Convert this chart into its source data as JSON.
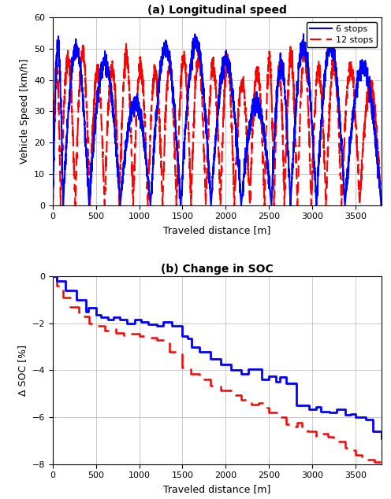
{
  "title_a": "(a) Longitudinal speed",
  "title_b": "(b) Change in SOC",
  "xlabel": "Traveled distance [m]",
  "ylabel_a": "Vehicle Speed [km/h]",
  "ylabel_b": "Δ SOC [%]",
  "legend_6": "6 stops",
  "legend_12": "12 stops",
  "color_6": "#0000FF",
  "color_12": "#FF0000",
  "xlim": [
    0,
    3800
  ],
  "ylim_a": [
    0,
    60
  ],
  "ylim_b": [
    -8,
    0
  ],
  "xticks": [
    0,
    500,
    1000,
    1500,
    2000,
    2500,
    3000,
    3500
  ],
  "yticks_a": [
    0,
    10,
    20,
    30,
    40,
    50,
    60
  ],
  "yticks_b": [
    0,
    -2,
    -4,
    -6,
    -8
  ],
  "speed_6_stops": [
    0,
    120,
    420,
    780,
    1130,
    1480,
    1830,
    2180,
    2530,
    2750,
    3050,
    3380,
    3800
  ],
  "speed_6_peaks": [
    51,
    50,
    46,
    33,
    50,
    52,
    46,
    33,
    45,
    51,
    51,
    44
  ],
  "speed_12_stops": [
    0,
    90,
    260,
    430,
    600,
    770,
    930,
    1100,
    1270,
    1430,
    1600,
    1770,
    1940,
    2100,
    2280,
    2450,
    2560,
    2680,
    2830,
    2990,
    3160,
    3340,
    3550,
    3800
  ],
  "speed_12_peaks": [
    46,
    47,
    49,
    43,
    44,
    48,
    44,
    43,
    45,
    47,
    47,
    45,
    46,
    39,
    43,
    48,
    43,
    48,
    49,
    43,
    46,
    44,
    38
  ],
  "soc6_x": [
    0,
    50,
    150,
    270,
    380,
    410,
    500,
    560,
    640,
    700,
    780,
    860,
    950,
    1020,
    1100,
    1200,
    1280,
    1380,
    1500,
    1560,
    1610,
    1700,
    1820,
    1940,
    2060,
    2180,
    2260,
    2420,
    2500,
    2580,
    2630,
    2700,
    2820,
    2960,
    3050,
    3100,
    3200,
    3280,
    3380,
    3450,
    3500,
    3620,
    3700,
    3800
  ],
  "soc6_y": [
    0.0,
    -0.2,
    -0.6,
    -1.0,
    -1.5,
    -1.35,
    -1.65,
    -1.75,
    -1.85,
    -1.75,
    -1.85,
    -2.0,
    -1.85,
    -1.95,
    -2.05,
    -2.1,
    -1.95,
    -2.1,
    -2.55,
    -2.65,
    -3.0,
    -3.2,
    -3.5,
    -3.75,
    -4.0,
    -4.15,
    -3.95,
    -4.4,
    -4.25,
    -4.5,
    -4.3,
    -4.55,
    -5.5,
    -5.65,
    -5.55,
    -5.75,
    -5.8,
    -5.65,
    -5.9,
    -5.85,
    -6.0,
    -6.1,
    -6.6,
    -6.9
  ],
  "soc12_x": [
    0,
    50,
    120,
    200,
    300,
    420,
    500,
    600,
    660,
    730,
    820,
    900,
    1000,
    1100,
    1200,
    1350,
    1500,
    1600,
    1700,
    1820,
    1940,
    2060,
    2180,
    2300,
    2380,
    2440,
    2500,
    2600,
    2700,
    2780,
    2830,
    2880,
    2950,
    3050,
    3120,
    3180,
    3250,
    3380,
    3450,
    3500,
    3580,
    3650,
    3720,
    3800
  ],
  "soc12_y": [
    0.0,
    -0.4,
    -0.9,
    -1.3,
    -1.7,
    -2.0,
    -2.1,
    -2.3,
    -2.25,
    -2.4,
    -2.5,
    -2.45,
    -2.55,
    -2.6,
    -2.7,
    -3.2,
    -3.9,
    -4.15,
    -4.4,
    -4.65,
    -4.85,
    -5.05,
    -5.25,
    -5.45,
    -5.4,
    -5.6,
    -5.8,
    -6.0,
    -6.3,
    -6.4,
    -6.25,
    -6.4,
    -6.6,
    -6.8,
    -6.7,
    -6.85,
    -7.05,
    -7.3,
    -7.4,
    -7.6,
    -7.7,
    -7.8,
    -7.9,
    -8.0
  ]
}
